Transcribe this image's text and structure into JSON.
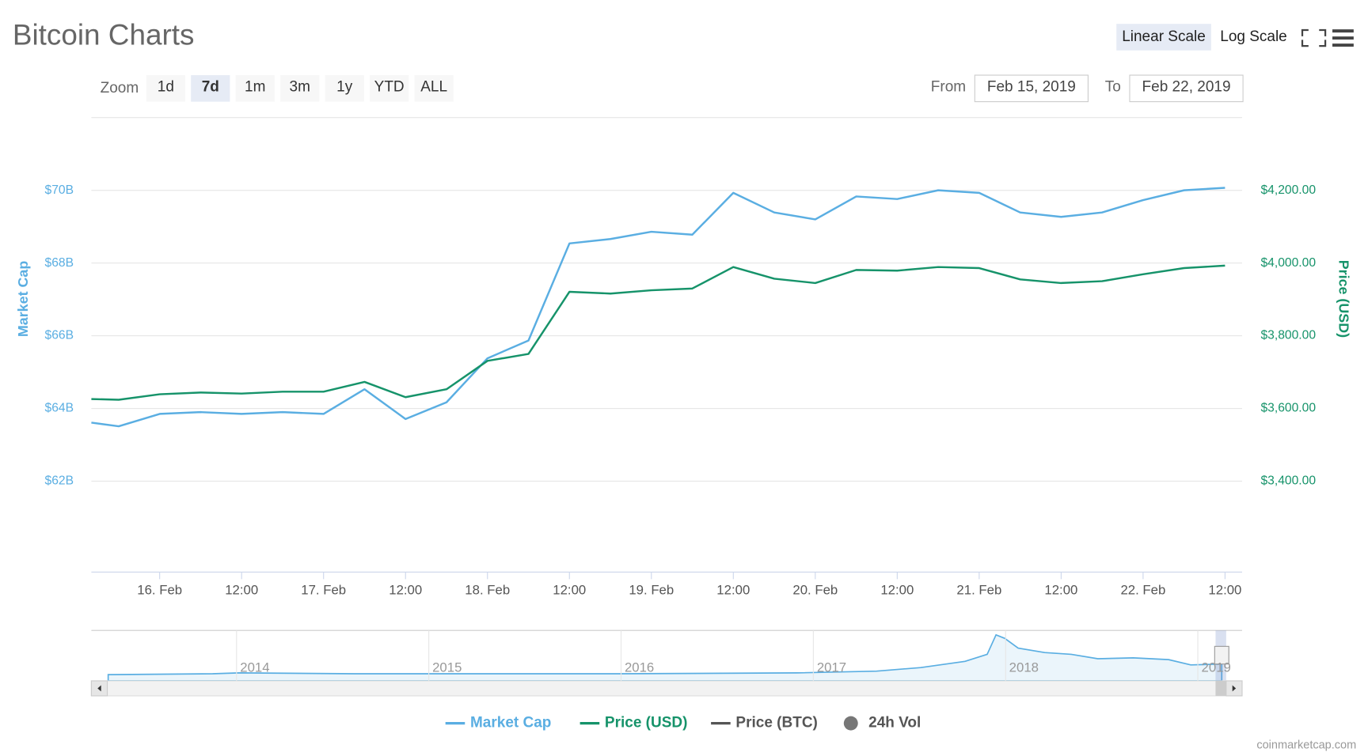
{
  "header": {
    "title": "Bitcoin Charts",
    "scale_buttons": [
      "Linear Scale",
      "Log Scale"
    ],
    "active_scale": 0,
    "zoom_label": "Zoom",
    "zoom_buttons": [
      "1d",
      "7d",
      "1m",
      "3m",
      "1y",
      "YTD",
      "ALL"
    ],
    "active_zoom": 1,
    "from_label": "From",
    "from_value": "Feb 15, 2019",
    "to_label": "To",
    "to_value": "Feb 22, 2019"
  },
  "chart_data": {
    "type": "line",
    "y_label": "Market Cap",
    "y2_label": "Price (USD)",
    "x": [
      "2019-02-15T14:00",
      "2019-02-15T18:00",
      "2019-02-16T00:00",
      "2019-02-16T06:00",
      "2019-02-16T12:00",
      "2019-02-16T18:00",
      "2019-02-17T00:00",
      "2019-02-17T06:00",
      "2019-02-17T12:00",
      "2019-02-17T18:00",
      "2019-02-18T00:00",
      "2019-02-18T06:00",
      "2019-02-18T12:00",
      "2019-02-18T18:00",
      "2019-02-19T00:00",
      "2019-02-19T06:00",
      "2019-02-19T12:00",
      "2019-02-19T18:00",
      "2019-02-20T00:00",
      "2019-02-20T06:00",
      "2019-02-20T12:00",
      "2019-02-20T18:00",
      "2019-02-21T00:00",
      "2019-02-21T06:00",
      "2019-02-21T12:00",
      "2019-02-21T18:00",
      "2019-02-22T00:00",
      "2019-02-22T06:00",
      "2019-02-22T12:00"
    ],
    "xlim": [
      "2019-02-15T14:00",
      "2019-02-22T14:30"
    ],
    "xticks": [
      {
        "value": "2019-02-16T00:00",
        "label": "16. Feb"
      },
      {
        "value": "2019-02-16T12:00",
        "label": "12:00"
      },
      {
        "value": "2019-02-17T00:00",
        "label": "17. Feb"
      },
      {
        "value": "2019-02-17T12:00",
        "label": "12:00"
      },
      {
        "value": "2019-02-18T00:00",
        "label": "18. Feb"
      },
      {
        "value": "2019-02-18T12:00",
        "label": "12:00"
      },
      {
        "value": "2019-02-19T00:00",
        "label": "19. Feb"
      },
      {
        "value": "2019-02-19T12:00",
        "label": "12:00"
      },
      {
        "value": "2019-02-20T00:00",
        "label": "20. Feb"
      },
      {
        "value": "2019-02-20T12:00",
        "label": "12:00"
      },
      {
        "value": "2019-02-21T00:00",
        "label": "21. Feb"
      },
      {
        "value": "2019-02-21T12:00",
        "label": "12:00"
      },
      {
        "value": "2019-02-22T00:00",
        "label": "22. Feb"
      },
      {
        "value": "2019-02-22T12:00",
        "label": "12:00"
      }
    ],
    "ylim": [
      59.5,
      72
    ],
    "yticks": [
      {
        "value": 62,
        "label": "$62B"
      },
      {
        "value": 64,
        "label": "$64B"
      },
      {
        "value": 66,
        "label": "$66B"
      },
      {
        "value": 68,
        "label": "$68B"
      },
      {
        "value": 70,
        "label": "$70B"
      }
    ],
    "y2lim": [
      3150,
      4400
    ],
    "y2ticks": [
      {
        "value": 3400,
        "label": "$3,400.00"
      },
      {
        "value": 3600,
        "label": "$3,600.00"
      },
      {
        "value": 3800,
        "label": "$3,800.00"
      },
      {
        "value": 4000,
        "label": "$4,000.00"
      },
      {
        "value": 4200,
        "label": "$4,200.00"
      }
    ],
    "grid": true,
    "series": [
      {
        "name": "Market Cap",
        "color": "#5aaee2",
        "values": [
          63.61,
          63.51,
          63.85,
          63.9,
          63.85,
          63.9,
          63.85,
          64.53,
          63.71,
          64.17,
          65.38,
          65.87,
          68.54,
          68.66,
          68.86,
          68.78,
          69.93,
          69.39,
          69.2,
          69.83,
          69.76,
          70.0,
          69.93,
          69.39,
          69.27,
          69.39,
          69.73,
          70.0,
          70.07
        ]
      },
      {
        "name": "Price (USD)",
        "color": "#16936a",
        "axis": "y2",
        "values": [
          3626,
          3624,
          3639,
          3644,
          3641,
          3646,
          3646,
          3673,
          3631,
          3653,
          3731,
          3750,
          3921,
          3916,
          3925,
          3930,
          3989,
          3957,
          3945,
          3981,
          3979,
          3989,
          3986,
          3955,
          3945,
          3950,
          3969,
          3986,
          3993
        ]
      }
    ],
    "extra_legend": [
      {
        "name": "Price (BTC)",
        "color": "#555555",
        "marker": "line"
      },
      {
        "name": "24h Vol",
        "color": "#777777",
        "marker": "circle"
      }
    ]
  },
  "navigator": {
    "labels": [
      "2014",
      "2015",
      "2016",
      "2017",
      "2018",
      "2019"
    ]
  },
  "credit": "coinmarketcap.com"
}
